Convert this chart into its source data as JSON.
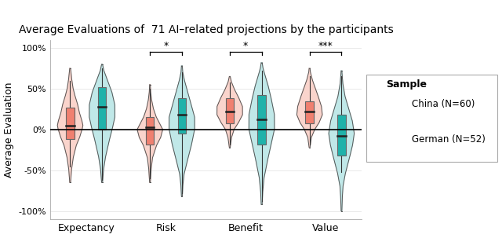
{
  "title": "Average Evaluations of  71 AI–related projections by the participants",
  "ylabel": "Average Evaluation",
  "categories": [
    "Expectancy",
    "Risk",
    "Benefit",
    "Value"
  ],
  "china_color": "#F08070",
  "china_color_light": "#FAD4CC",
  "german_color": "#20B2AA",
  "german_color_light": "#C0E8E8",
  "legend_title": "Sample",
  "legend_china": "China (N=60)",
  "legend_german": "German (N=52)",
  "ylim": [
    -110,
    110
  ],
  "yticks": [
    -100,
    -50,
    0,
    50,
    100
  ],
  "ytick_labels": [
    "-100%",
    "-50%",
    "0%",
    "50%",
    "100%"
  ],
  "significance": {
    "Risk": "*",
    "Benefit": "*",
    "Value": "***"
  },
  "china_data": {
    "Expectancy": {
      "median": 5,
      "q1": -12,
      "q3": 27,
      "whisker_low": -45,
      "whisker_high": 60,
      "violin_y": [
        -65,
        -50,
        -35,
        -20,
        -10,
        0,
        5,
        10,
        20,
        30,
        40,
        50,
        60,
        70,
        75
      ],
      "violin_w": [
        0.01,
        0.03,
        0.07,
        0.14,
        0.22,
        0.28,
        0.3,
        0.28,
        0.22,
        0.18,
        0.12,
        0.07,
        0.04,
        0.02,
        0.01
      ]
    },
    "Risk": {
      "median": 3,
      "q1": -18,
      "q3": 15,
      "whisker_low": -60,
      "whisker_high": 50,
      "violin_y": [
        -65,
        -50,
        -35,
        -20,
        -10,
        0,
        5,
        15,
        25,
        35,
        45,
        55
      ],
      "violin_w": [
        0.01,
        0.03,
        0.07,
        0.18,
        0.3,
        0.36,
        0.3,
        0.18,
        0.1,
        0.05,
        0.02,
        0.01
      ]
    },
    "Benefit": {
      "median": 22,
      "q1": 8,
      "q3": 38,
      "whisker_low": -18,
      "whisker_high": 58,
      "violin_y": [
        -22,
        -10,
        0,
        8,
        18,
        28,
        38,
        48,
        58,
        65
      ],
      "violin_w": [
        0.01,
        0.04,
        0.1,
        0.2,
        0.3,
        0.3,
        0.22,
        0.12,
        0.04,
        0.01
      ]
    },
    "Value": {
      "median": 22,
      "q1": 8,
      "q3": 35,
      "whisker_low": -18,
      "whisker_high": 65,
      "violin_y": [
        -22,
        -10,
        0,
        8,
        18,
        28,
        38,
        50,
        60,
        70,
        75
      ],
      "violin_w": [
        0.01,
        0.04,
        0.12,
        0.22,
        0.3,
        0.28,
        0.22,
        0.14,
        0.07,
        0.02,
        0.01
      ]
    }
  },
  "german_data": {
    "Expectancy": {
      "median": 28,
      "q1": 0,
      "q3": 52,
      "whisker_low": -62,
      "whisker_high": 75,
      "violin_y": [
        -65,
        -50,
        -35,
        -15,
        0,
        15,
        30,
        45,
        60,
        72,
        80
      ],
      "violin_w": [
        0.01,
        0.03,
        0.07,
        0.15,
        0.22,
        0.28,
        0.28,
        0.22,
        0.12,
        0.04,
        0.01
      ]
    },
    "Risk": {
      "median": 18,
      "q1": -5,
      "q3": 38,
      "whisker_low": -78,
      "whisker_high": 70,
      "violin_y": [
        -82,
        -70,
        -55,
        -40,
        -20,
        0,
        15,
        30,
        45,
        58,
        70,
        78
      ],
      "violin_w": [
        0.01,
        0.02,
        0.05,
        0.12,
        0.22,
        0.3,
        0.3,
        0.22,
        0.14,
        0.07,
        0.02,
        0.01
      ]
    },
    "Benefit": {
      "median": 12,
      "q1": -18,
      "q3": 42,
      "whisker_low": -88,
      "whisker_high": 72,
      "violin_y": [
        -92,
        -78,
        -60,
        -40,
        -20,
        0,
        18,
        35,
        52,
        65,
        75,
        82
      ],
      "violin_w": [
        0.01,
        0.02,
        0.05,
        0.12,
        0.2,
        0.28,
        0.28,
        0.22,
        0.15,
        0.08,
        0.03,
        0.01
      ]
    },
    "Value": {
      "median": -8,
      "q1": -32,
      "q3": 18,
      "whisker_low": -52,
      "whisker_high": 65,
      "violin_y": [
        -100,
        -85,
        -70,
        -55,
        -38,
        -20,
        -5,
        10,
        25,
        40,
        55,
        65,
        72
      ],
      "violin_w": [
        0.01,
        0.02,
        0.04,
        0.1,
        0.2,
        0.3,
        0.35,
        0.3,
        0.2,
        0.1,
        0.04,
        0.02,
        0.01
      ]
    }
  }
}
